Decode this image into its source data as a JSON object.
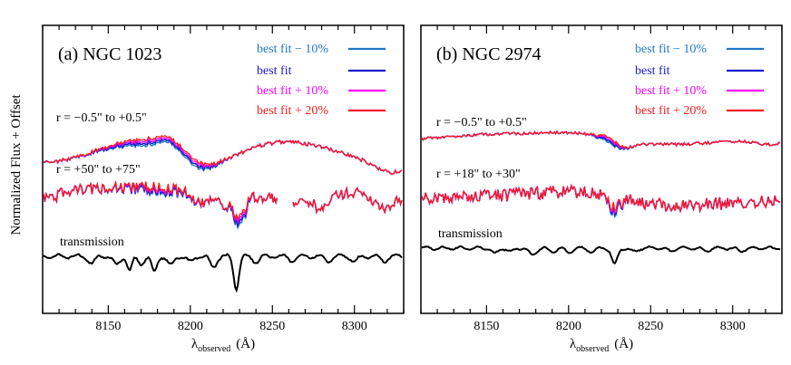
{
  "ylabel": "Normalized  Flux  +  Offset",
  "colors": {
    "minus10": "#1f77c4",
    "best": "#1a1ad0",
    "plus10": "#ff00ff",
    "plus20": "#ff1a1a",
    "transmission": "#000000",
    "axes": "#000000"
  },
  "chart_data": [
    {
      "type": "line",
      "title": "(a)  NGC 1023",
      "xlabel_main": "λ",
      "xlabel_sub": "observed",
      "xlabel_unit": "(Å)",
      "xlim": [
        8110,
        8330
      ],
      "ylim": [
        0,
        1
      ],
      "xticks": [
        8150,
        8200,
        8250,
        8300
      ],
      "legend": [
        "best fit − 10%",
        "best fit",
        "best fit + 10%",
        "best fit + 20%"
      ],
      "annotations": [
        "r = −0.5\" to +0.5\"",
        "r = +50\" to +75\"",
        "transmission"
      ],
      "series": [
        {
          "name": "best fit − 10%",
          "color_key": "minus10"
        },
        {
          "name": "best fit",
          "color_key": "best"
        },
        {
          "name": "best fit + 10%",
          "color_key": "plus10"
        },
        {
          "name": "best fit + 20%",
          "color_key": "plus20"
        }
      ]
    },
    {
      "type": "line",
      "title": "(b)  NGC 2974",
      "xlabel_main": "λ",
      "xlabel_sub": "observed",
      "xlabel_unit": "(Å)",
      "xlim": [
        8110,
        8330
      ],
      "ylim": [
        0,
        1
      ],
      "xticks": [
        8150,
        8200,
        8250,
        8300
      ],
      "legend": [
        "best fit − 10%",
        "best fit",
        "best fit + 10%",
        "best fit + 20%"
      ],
      "annotations": [
        "r = −0.5\" to +0.5\"",
        "r = +18\" to +30\"",
        "transmission"
      ],
      "series": [
        {
          "name": "best fit − 10%",
          "color_key": "minus10"
        },
        {
          "name": "best fit",
          "color_key": "best"
        },
        {
          "name": "best fit + 10%",
          "color_key": "plus10"
        },
        {
          "name": "best fit + 20%",
          "color_key": "plus20"
        }
      ]
    }
  ]
}
